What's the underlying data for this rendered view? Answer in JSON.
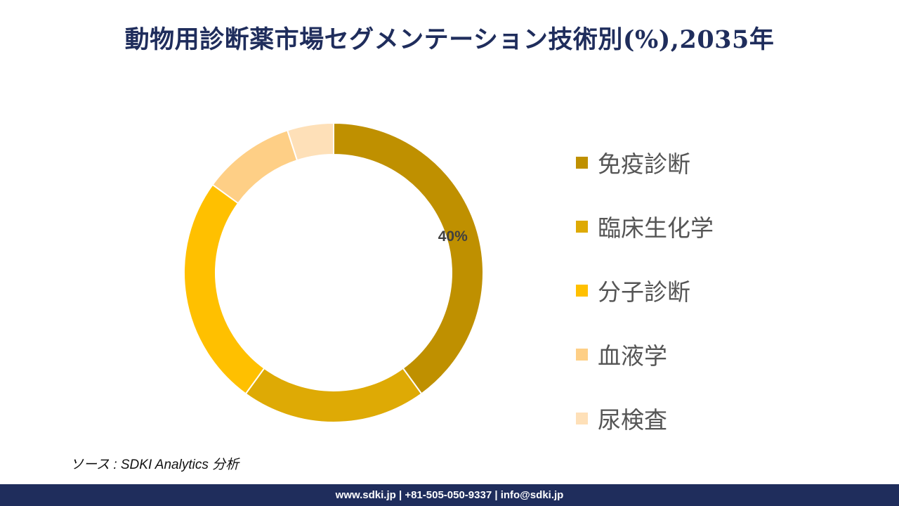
{
  "chart_data": {
    "type": "donut",
    "title": "動物用診断薬市場セグメンテーション技術別(%),2035年",
    "categories": [
      "免疫診断",
      "臨床生化学",
      "分子診断",
      "血液学",
      "尿検査"
    ],
    "values": [
      40,
      20,
      25,
      10,
      5
    ],
    "colors": [
      "#bf9000",
      "#deaa05",
      "#ffc000",
      "#fecf86",
      "#fee0b8"
    ],
    "data_labels": [
      "40%",
      null,
      null,
      null,
      null
    ],
    "legend_position": "right"
  },
  "source": "ソース : SDKI Analytics 分析",
  "footer": "www.sdki.jp | +81-505-050-9337 | info@sdki.jp"
}
